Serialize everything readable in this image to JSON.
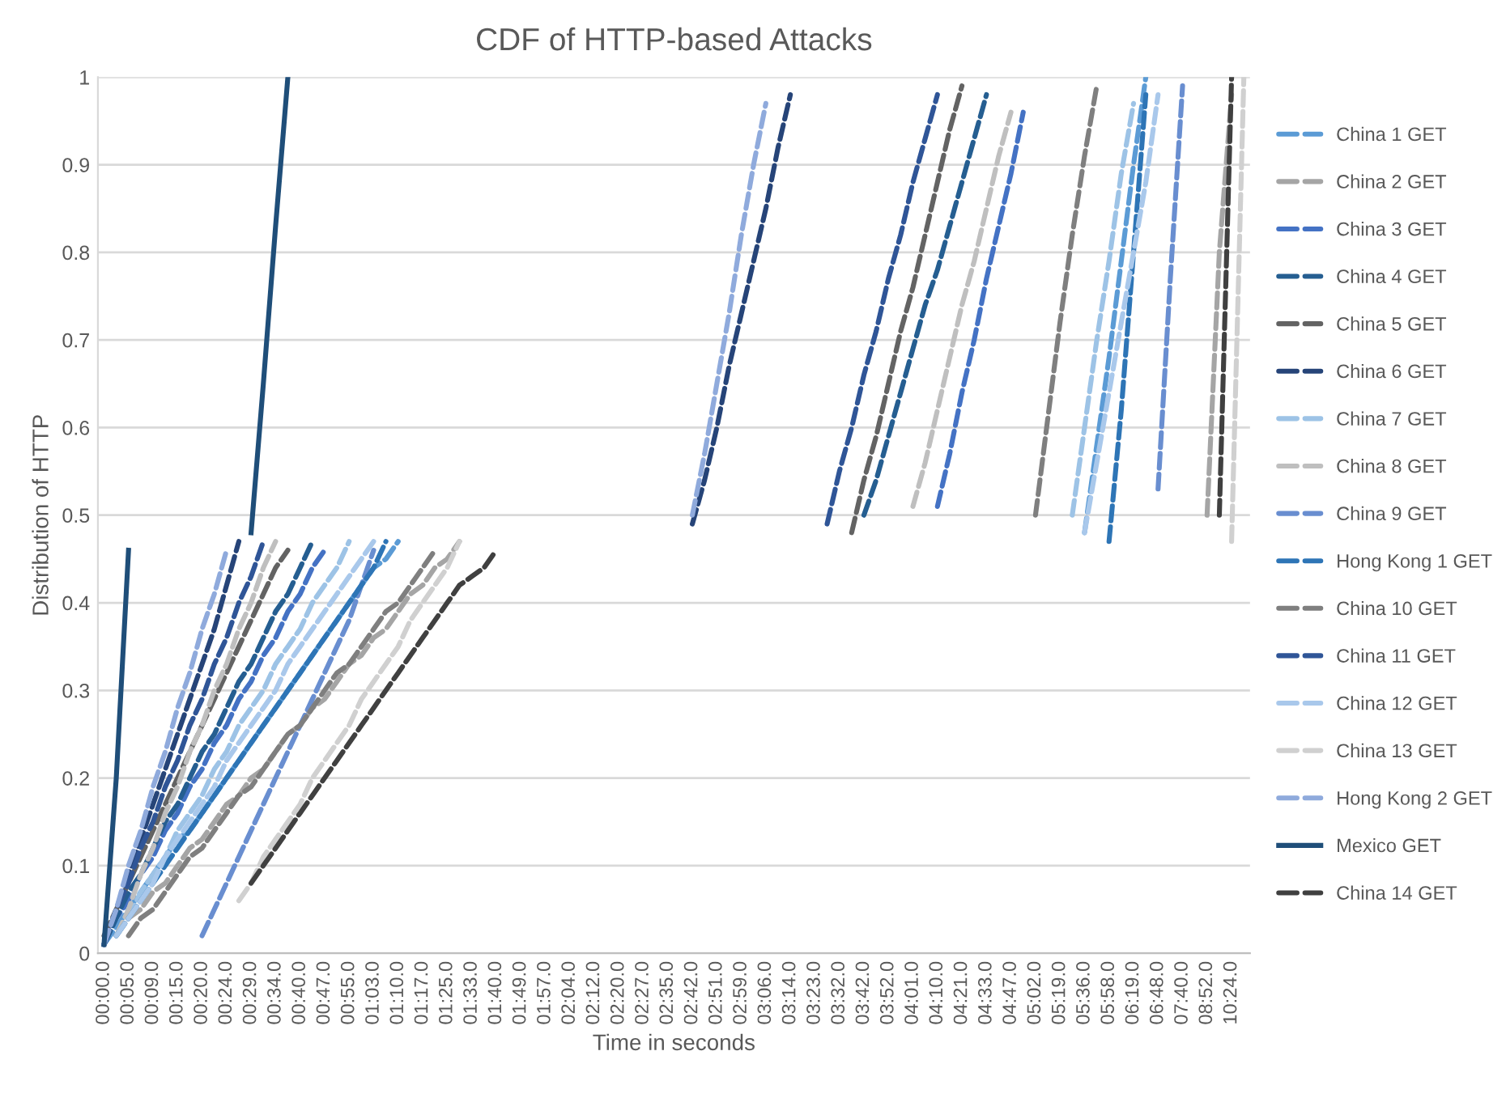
{
  "chart_data": {
    "type": "line",
    "title": "CDF of HTTP-based Attacks",
    "xlabel": "Time in seconds",
    "ylabel": "Distribution of HTTP",
    "categories": [
      "00:00.0",
      null,
      "00:05.0",
      null,
      "00:09.0",
      null,
      "00:15.0",
      null,
      "00:20.0",
      null,
      "00:24.0",
      null,
      "00:29.0",
      null,
      "00:34.0",
      null,
      "00:40.0",
      null,
      "00:47.0",
      null,
      "00:55.0",
      null,
      "01:03.0",
      null,
      "01:10.0",
      null,
      "01:17.0",
      null,
      "01:25.0",
      null,
      "01:33.0",
      null,
      "01:40.0",
      null,
      "01:49.0",
      null,
      "01:57.0",
      null,
      "02:04.0",
      null,
      "02:12.0",
      null,
      "02:20.0",
      null,
      "02:27.0",
      null,
      "02:35.0",
      null,
      "02:42.0",
      null,
      "02:51.0",
      null,
      "02:59.0",
      null,
      "03:06.0",
      null,
      "03:14.0",
      null,
      "03:23.0",
      null,
      "03:32.0",
      null,
      "03:42.0",
      null,
      "03:52.0",
      null,
      "04:01.0",
      null,
      "04:10.0",
      null,
      "04:21.0",
      null,
      "04:33.0",
      null,
      "04:47.0",
      null,
      "05:02.0",
      null,
      "05:19.0",
      null,
      "05:36.0",
      null,
      "05:58.0",
      null,
      "06:19.0",
      null,
      "06:48.0",
      null,
      "07:40.0",
      null,
      "08:52.0",
      null,
      "10:24.0",
      null
    ],
    "ylim": [
      0,
      1
    ],
    "yticks": [
      0,
      0.1,
      0.2,
      0.3,
      0.4,
      0.5,
      0.6,
      0.7,
      0.8,
      0.9,
      1
    ],
    "grid": "y",
    "legend": "right",
    "series": [
      {
        "name": "China 1 GET",
        "color": "#5b9bd5",
        "line_style": "dashed",
        "values": [
          0.01,
          0.03,
          0.05,
          0.07,
          0.09,
          0.11,
          0.13,
          0.14,
          0.16,
          0.18,
          0.2,
          0.22,
          0.24,
          0.26,
          0.28,
          0.3,
          0.32,
          0.34,
          0.36,
          0.38,
          0.4,
          0.42,
          0.44,
          0.45,
          0.47,
          null,
          null,
          null,
          null,
          null,
          null,
          null,
          null,
          null,
          null,
          null,
          null,
          null,
          null,
          null,
          null,
          null,
          null,
          null,
          null,
          null,
          null,
          null,
          null,
          null,
          null,
          null,
          null,
          null,
          null,
          null,
          null,
          null,
          null,
          null,
          null,
          null,
          null,
          null,
          null,
          null,
          null,
          null,
          null,
          null,
          null,
          null,
          null,
          null,
          null,
          null,
          null,
          null,
          null,
          null,
          0.48,
          0.58,
          0.68,
          0.79,
          0.9,
          1.0,
          null,
          null,
          null,
          null,
          null,
          null,
          null,
          null
        ]
      },
      {
        "name": "China 2 GET",
        "color": "#a5a5a5",
        "line_style": "dashed",
        "values": [
          null,
          0.02,
          0.04,
          0.05,
          0.07,
          0.08,
          0.1,
          0.12,
          0.13,
          0.15,
          0.17,
          0.18,
          0.2,
          0.21,
          0.23,
          0.25,
          0.26,
          0.28,
          0.29,
          0.31,
          0.33,
          0.34,
          0.36,
          0.37,
          0.39,
          0.41,
          0.42,
          0.44,
          0.45,
          0.47,
          null,
          null,
          null,
          null,
          null,
          null,
          null,
          null,
          null,
          null,
          null,
          null,
          null,
          null,
          null,
          null,
          null,
          null,
          null,
          null,
          null,
          null,
          null,
          null,
          null,
          null,
          null,
          null,
          null,
          null,
          null,
          null,
          null,
          null,
          null,
          null,
          null,
          null,
          null,
          null,
          null,
          null,
          null,
          null,
          null,
          null,
          null,
          null,
          null,
          null,
          null,
          null,
          null,
          null,
          null,
          null,
          null,
          null,
          null,
          null,
          0.5,
          0.8,
          0.98,
          null
        ]
      },
      {
        "name": "China 3 GET",
        "color": "#4472c4",
        "line_style": "dashed",
        "values": [
          0.01,
          0.04,
          0.06,
          0.09,
          0.11,
          0.14,
          0.16,
          0.19,
          0.21,
          0.24,
          0.26,
          0.29,
          0.31,
          0.34,
          0.36,
          0.39,
          0.41,
          0.44,
          0.46,
          null,
          null,
          null,
          null,
          null,
          null,
          null,
          null,
          null,
          null,
          null,
          null,
          null,
          null,
          null,
          null,
          null,
          null,
          null,
          null,
          null,
          null,
          null,
          null,
          null,
          null,
          null,
          null,
          null,
          null,
          null,
          null,
          null,
          null,
          null,
          null,
          null,
          null,
          null,
          null,
          null,
          null,
          null,
          null,
          null,
          null,
          null,
          null,
          null,
          0.51,
          0.57,
          0.64,
          0.7,
          0.77,
          0.83,
          0.89,
          0.96,
          null,
          null,
          null,
          null,
          null,
          null,
          null,
          null,
          null,
          null,
          null,
          null,
          null,
          null,
          null,
          null,
          null,
          null
        ]
      },
      {
        "name": "China 4 GET",
        "color": "#255e91",
        "line_style": "dashed",
        "values": [
          0.01,
          0.04,
          0.07,
          0.09,
          0.12,
          0.15,
          0.17,
          0.2,
          0.23,
          0.25,
          0.28,
          0.31,
          0.33,
          0.36,
          0.39,
          0.41,
          0.44,
          0.47,
          null,
          null,
          null,
          null,
          null,
          null,
          null,
          null,
          null,
          null,
          null,
          null,
          null,
          null,
          null,
          null,
          null,
          null,
          null,
          null,
          null,
          null,
          null,
          null,
          null,
          null,
          null,
          null,
          null,
          null,
          null,
          null,
          null,
          null,
          null,
          null,
          null,
          null,
          null,
          null,
          null,
          null,
          null,
          null,
          0.5,
          0.54,
          0.59,
          0.64,
          0.69,
          0.74,
          0.78,
          0.83,
          0.88,
          0.93,
          0.98,
          null,
          null,
          null,
          null,
          null,
          null,
          null,
          null,
          null,
          null,
          null,
          null,
          null,
          null,
          null,
          null,
          null,
          null,
          null,
          null,
          null
        ]
      },
      {
        "name": "China 5 GET",
        "color": "#636363",
        "line_style": "dashed",
        "values": [
          0.02,
          0.05,
          0.08,
          0.11,
          0.14,
          0.17,
          0.2,
          0.23,
          0.26,
          0.29,
          0.32,
          0.35,
          0.38,
          0.41,
          0.44,
          0.46,
          null,
          null,
          null,
          null,
          null,
          null,
          null,
          null,
          null,
          null,
          null,
          null,
          null,
          null,
          null,
          null,
          null,
          null,
          null,
          null,
          null,
          null,
          null,
          null,
          null,
          null,
          null,
          null,
          null,
          null,
          null,
          null,
          null,
          null,
          null,
          null,
          null,
          null,
          null,
          null,
          null,
          null,
          null,
          null,
          null,
          0.48,
          0.54,
          0.59,
          0.65,
          0.71,
          0.76,
          0.82,
          0.88,
          0.94,
          0.99,
          null,
          null,
          null,
          null,
          null,
          null,
          null,
          null,
          null,
          null,
          null,
          null,
          null,
          null,
          null,
          null,
          null,
          null,
          null,
          null,
          null,
          null,
          null
        ]
      },
      {
        "name": "China 6 GET",
        "color": "#264478",
        "line_style": "dashed",
        "values": [
          0.01,
          0.05,
          0.09,
          0.13,
          0.17,
          0.21,
          0.25,
          0.29,
          0.33,
          0.37,
          0.42,
          0.47,
          null,
          null,
          null,
          null,
          null,
          null,
          null,
          null,
          null,
          null,
          null,
          null,
          null,
          null,
          null,
          null,
          null,
          null,
          null,
          null,
          null,
          null,
          null,
          null,
          null,
          null,
          null,
          null,
          null,
          null,
          null,
          null,
          null,
          null,
          null,
          null,
          0.49,
          0.54,
          0.6,
          0.67,
          0.73,
          0.79,
          0.85,
          0.92,
          0.98,
          null,
          null,
          null,
          null,
          null,
          null,
          null,
          null,
          null,
          null,
          null,
          null,
          null,
          null,
          null,
          null,
          null,
          null,
          null,
          null,
          null,
          null,
          null,
          null,
          null,
          null,
          null,
          null,
          null,
          null,
          null,
          null,
          null,
          null,
          null,
          null,
          null
        ]
      },
      {
        "name": "China 7 GET",
        "color": "#9dc3e6",
        "line_style": "dashed",
        "values": [
          null,
          0.02,
          0.04,
          0.07,
          0.09,
          0.11,
          0.14,
          0.16,
          0.18,
          0.21,
          0.23,
          0.26,
          0.28,
          0.3,
          0.33,
          0.35,
          0.37,
          0.4,
          0.42,
          0.44,
          0.47,
          null,
          null,
          null,
          null,
          null,
          null,
          null,
          null,
          null,
          null,
          null,
          null,
          null,
          null,
          null,
          null,
          null,
          null,
          null,
          null,
          null,
          null,
          null,
          null,
          null,
          null,
          null,
          null,
          null,
          null,
          null,
          null,
          null,
          null,
          null,
          null,
          null,
          null,
          null,
          null,
          null,
          null,
          null,
          null,
          null,
          null,
          null,
          null,
          null,
          null,
          null,
          null,
          null,
          null,
          null,
          null,
          null,
          null,
          0.5,
          0.6,
          0.7,
          0.79,
          0.89,
          0.97,
          null,
          null,
          null,
          null,
          null,
          null,
          null,
          null,
          null
        ]
      },
      {
        "name": "China 8 GET",
        "color": "#bfbfbf",
        "line_style": "dashed",
        "values": [
          null,
          0.02,
          0.05,
          0.09,
          0.12,
          0.16,
          0.19,
          0.23,
          0.26,
          0.3,
          0.33,
          0.37,
          0.4,
          0.44,
          0.47,
          null,
          null,
          null,
          null,
          null,
          null,
          null,
          null,
          null,
          null,
          null,
          null,
          null,
          null,
          null,
          null,
          null,
          null,
          null,
          null,
          null,
          null,
          null,
          null,
          null,
          null,
          null,
          null,
          null,
          null,
          null,
          null,
          null,
          null,
          null,
          null,
          null,
          null,
          null,
          null,
          null,
          null,
          null,
          null,
          null,
          null,
          null,
          null,
          null,
          null,
          null,
          0.51,
          0.56,
          0.62,
          0.68,
          0.74,
          0.79,
          0.85,
          0.91,
          0.96,
          null,
          null,
          null,
          null,
          null,
          null,
          null,
          null,
          null,
          null,
          null,
          null,
          null,
          null,
          null,
          null,
          null,
          null,
          null
        ]
      },
      {
        "name": "China 9 GET",
        "color": "#698ed0",
        "line_style": "dashed",
        "values": [
          null,
          null,
          null,
          null,
          null,
          null,
          null,
          null,
          0.02,
          0.05,
          0.08,
          0.11,
          0.14,
          0.17,
          0.2,
          0.23,
          0.26,
          0.29,
          0.32,
          0.35,
          0.38,
          0.42,
          0.46,
          null,
          null,
          null,
          null,
          null,
          null,
          null,
          null,
          null,
          null,
          null,
          null,
          null,
          null,
          null,
          null,
          null,
          null,
          null,
          null,
          null,
          null,
          null,
          null,
          null,
          null,
          null,
          null,
          null,
          null,
          null,
          null,
          null,
          null,
          null,
          null,
          null,
          null,
          null,
          null,
          null,
          null,
          null,
          null,
          null,
          null,
          null,
          null,
          null,
          null,
          null,
          null,
          null,
          null,
          null,
          null,
          null,
          null,
          null,
          null,
          null,
          null,
          null,
          0.53,
          0.77,
          0.99,
          null,
          null,
          null,
          null,
          null
        ]
      },
      {
        "name": "Hong Kong 1 GET",
        "color": "#2e75b6",
        "line_style": "dashed",
        "values": [
          null,
          0.02,
          0.04,
          0.06,
          0.08,
          0.1,
          0.12,
          0.14,
          0.16,
          0.18,
          0.2,
          0.22,
          0.24,
          0.26,
          0.28,
          0.3,
          0.32,
          0.34,
          0.36,
          0.38,
          0.4,
          0.42,
          0.44,
          0.47,
          null,
          null,
          null,
          null,
          null,
          null,
          null,
          null,
          null,
          null,
          null,
          null,
          null,
          null,
          null,
          null,
          null,
          null,
          null,
          null,
          null,
          null,
          null,
          null,
          null,
          null,
          null,
          null,
          null,
          null,
          null,
          null,
          null,
          null,
          null,
          null,
          null,
          null,
          null,
          null,
          null,
          null,
          null,
          null,
          null,
          null,
          null,
          null,
          null,
          null,
          null,
          null,
          null,
          null,
          null,
          null,
          null,
          null,
          0.47,
          0.62,
          0.8,
          0.98,
          null,
          null,
          null,
          null,
          null,
          null,
          null,
          null
        ]
      },
      {
        "name": "China 10 GET",
        "color": "#7f7f7f",
        "line_style": "dashed",
        "values": [
          null,
          null,
          0.02,
          0.04,
          0.05,
          0.07,
          0.09,
          0.11,
          0.12,
          0.14,
          0.16,
          0.18,
          0.19,
          0.21,
          0.23,
          0.25,
          0.26,
          0.28,
          0.3,
          0.32,
          0.33,
          0.35,
          0.37,
          0.39,
          0.4,
          0.42,
          0.44,
          0.46,
          null,
          null,
          null,
          null,
          null,
          null,
          null,
          null,
          null,
          null,
          null,
          null,
          null,
          null,
          null,
          null,
          null,
          null,
          null,
          null,
          null,
          null,
          null,
          null,
          null,
          null,
          null,
          null,
          null,
          null,
          null,
          null,
          null,
          null,
          null,
          null,
          null,
          null,
          null,
          null,
          null,
          null,
          null,
          null,
          null,
          null,
          null,
          null,
          0.5,
          0.61,
          0.72,
          0.82,
          0.91,
          0.99,
          null,
          null,
          null,
          null,
          null,
          null,
          null,
          null,
          null,
          null,
          null,
          null
        ]
      },
      {
        "name": "China 11 GET",
        "color": "#2f5597",
        "line_style": "dashed",
        "values": [
          0.01,
          0.05,
          0.08,
          0.12,
          0.15,
          0.19,
          0.22,
          0.26,
          0.29,
          0.33,
          0.36,
          0.4,
          0.43,
          0.47,
          null,
          null,
          null,
          null,
          null,
          null,
          null,
          null,
          null,
          null,
          null,
          null,
          null,
          null,
          null,
          null,
          null,
          null,
          null,
          null,
          null,
          null,
          null,
          null,
          null,
          null,
          null,
          null,
          null,
          null,
          null,
          null,
          null,
          null,
          null,
          null,
          null,
          null,
          null,
          null,
          null,
          null,
          null,
          null,
          null,
          0.49,
          0.55,
          0.6,
          0.66,
          0.71,
          0.77,
          0.82,
          0.88,
          0.93,
          0.98,
          null,
          null,
          null,
          null,
          null,
          null,
          null,
          null,
          null,
          null,
          null,
          null,
          null,
          null,
          null,
          null,
          null,
          null,
          null,
          null,
          null,
          null,
          null,
          null,
          null
        ]
      },
      {
        "name": "China 12 GET",
        "color": "#a9c8eb",
        "line_style": "dashed",
        "values": [
          null,
          0.02,
          0.04,
          0.06,
          0.08,
          0.11,
          0.13,
          0.15,
          0.17,
          0.19,
          0.22,
          0.24,
          0.26,
          0.28,
          0.3,
          0.33,
          0.35,
          0.37,
          0.39,
          0.41,
          0.43,
          0.45,
          0.47,
          null,
          null,
          null,
          null,
          null,
          null,
          null,
          null,
          null,
          null,
          null,
          null,
          null,
          null,
          null,
          null,
          null,
          null,
          null,
          null,
          null,
          null,
          null,
          null,
          null,
          null,
          null,
          null,
          null,
          null,
          null,
          null,
          null,
          null,
          null,
          null,
          null,
          null,
          null,
          null,
          null,
          null,
          null,
          null,
          null,
          null,
          null,
          null,
          null,
          null,
          null,
          null,
          null,
          null,
          null,
          null,
          null,
          0.48,
          0.56,
          0.64,
          0.72,
          0.8,
          0.88,
          0.98,
          null,
          null,
          null,
          null,
          null,
          null,
          null
        ]
      },
      {
        "name": "China 13 GET",
        "color": "#d0d0d0",
        "line_style": "dashed",
        "values": [
          null,
          null,
          null,
          null,
          null,
          null,
          null,
          null,
          null,
          null,
          null,
          0.06,
          0.08,
          0.11,
          0.13,
          0.15,
          0.17,
          0.2,
          0.22,
          0.24,
          0.26,
          0.29,
          0.31,
          0.33,
          0.35,
          0.38,
          0.4,
          0.42,
          0.44,
          0.47,
          null,
          null,
          null,
          null,
          null,
          null,
          null,
          null,
          null,
          null,
          null,
          null,
          null,
          null,
          null,
          null,
          null,
          null,
          null,
          null,
          null,
          null,
          null,
          null,
          null,
          null,
          null,
          null,
          null,
          null,
          null,
          null,
          null,
          null,
          null,
          null,
          null,
          null,
          null,
          null,
          null,
          null,
          null,
          null,
          null,
          null,
          null,
          null,
          null,
          null,
          null,
          null,
          null,
          null,
          null,
          null,
          null,
          null,
          null,
          null,
          null,
          null,
          0.47,
          1.0
        ]
      },
      {
        "name": "Hong Kong 2 GET",
        "color": "#8faadc",
        "line_style": "dashed",
        "values": [
          0.01,
          0.05,
          0.1,
          0.14,
          0.19,
          0.23,
          0.28,
          0.32,
          0.37,
          0.41,
          0.46,
          null,
          null,
          null,
          null,
          null,
          null,
          null,
          null,
          null,
          null,
          null,
          null,
          null,
          null,
          null,
          null,
          null,
          null,
          null,
          null,
          null,
          null,
          null,
          null,
          null,
          null,
          null,
          null,
          null,
          null,
          null,
          null,
          null,
          null,
          null,
          null,
          null,
          0.5,
          0.57,
          0.65,
          0.73,
          0.82,
          0.9,
          0.97,
          null,
          null,
          null,
          null,
          null,
          null,
          null,
          null,
          null,
          null,
          null,
          null,
          null,
          null,
          null,
          null,
          null,
          null,
          null,
          null,
          null,
          null,
          null,
          null,
          null,
          null,
          null,
          null,
          null,
          null,
          null,
          null,
          null,
          null,
          null,
          null,
          null,
          null,
          null
        ]
      },
      {
        "name": "Mexico GET",
        "color": "#1f4e79",
        "line_style": "solid",
        "values": [
          0.01,
          0.2,
          0.46,
          null,
          null,
          null,
          null,
          null,
          null,
          null,
          null,
          null,
          0.48,
          0.65,
          0.83,
          1.0,
          null,
          null,
          null,
          null,
          null,
          null,
          null,
          null,
          null,
          null,
          null,
          null,
          null,
          null,
          null,
          null,
          null,
          null,
          null,
          null,
          null,
          null,
          null,
          null,
          null,
          null,
          null,
          null,
          null,
          null,
          null,
          null,
          null,
          null,
          null,
          null,
          null,
          null,
          null,
          null,
          null,
          null,
          null,
          null,
          null,
          null,
          null,
          null,
          null,
          null,
          null,
          null,
          null,
          null,
          null,
          null,
          null,
          null,
          null,
          null,
          null,
          null,
          null,
          null,
          null,
          null,
          null,
          null,
          null,
          null,
          null,
          null,
          null,
          null,
          null,
          null,
          null,
          null
        ]
      },
      {
        "name": "China 14 GET",
        "color": "#404040",
        "line_style": "dashed",
        "values": [
          null,
          null,
          null,
          null,
          null,
          null,
          null,
          null,
          null,
          null,
          null,
          null,
          0.08,
          0.1,
          0.12,
          0.14,
          0.16,
          0.18,
          0.2,
          0.22,
          0.24,
          0.26,
          0.28,
          0.3,
          0.32,
          0.34,
          0.36,
          0.38,
          0.4,
          0.42,
          0.43,
          0.44,
          0.46,
          null,
          null,
          null,
          null,
          null,
          null,
          null,
          null,
          null,
          null,
          null,
          null,
          null,
          null,
          null,
          null,
          null,
          null,
          null,
          null,
          null,
          null,
          null,
          null,
          null,
          null,
          null,
          null,
          null,
          null,
          null,
          null,
          null,
          null,
          null,
          null,
          null,
          null,
          null,
          null,
          null,
          null,
          null,
          null,
          null,
          null,
          null,
          null,
          null,
          null,
          null,
          null,
          null,
          null,
          null,
          null,
          null,
          null,
          0.5,
          1.0,
          null
        ]
      }
    ]
  }
}
